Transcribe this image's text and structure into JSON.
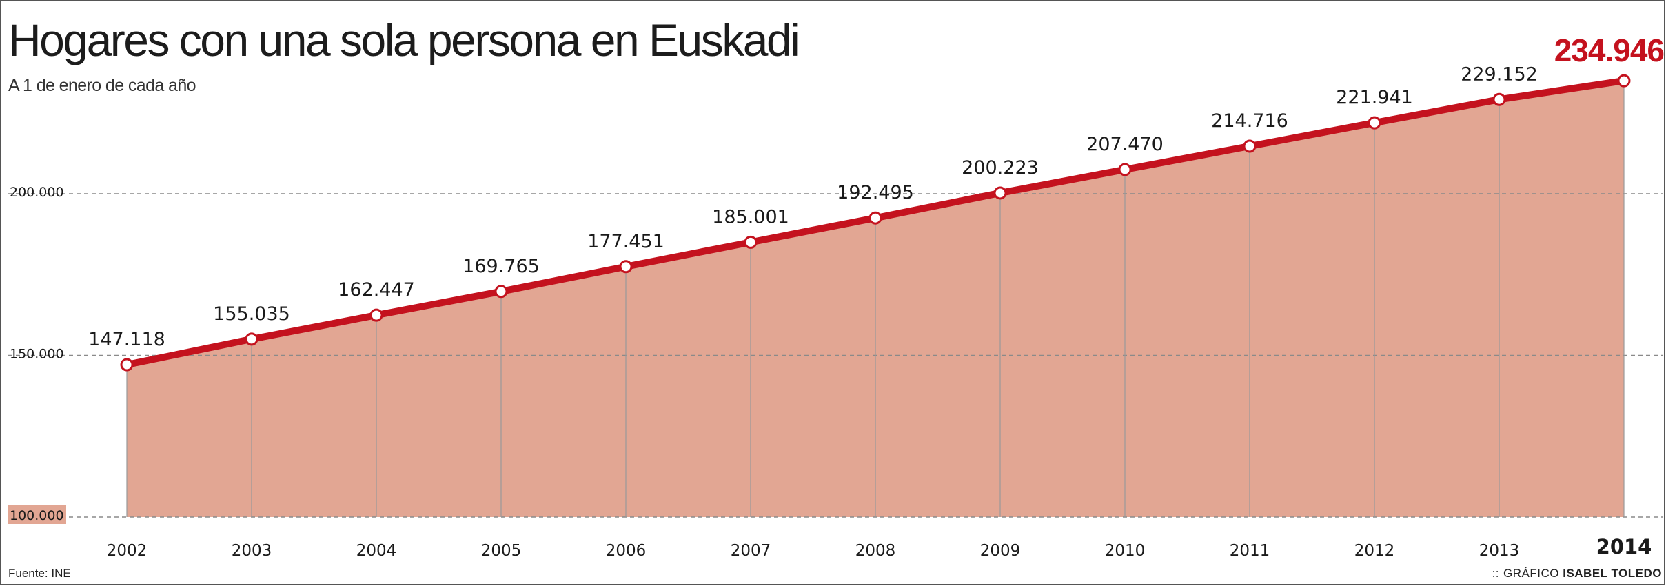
{
  "title": "Hogares con una sola persona en Euskadi",
  "subtitle": "A 1 de enero de cada año",
  "source": "Fuente: INE",
  "credit_prefix": "GRÁFICO",
  "credit_name": "ISABEL TOLEDO",
  "colors": {
    "line": "#c4121e",
    "area": "#e2a693",
    "highlight": "#c4121e"
  },
  "chart_data": {
    "type": "area",
    "title": "Hogares con una sola persona en Euskadi",
    "subtitle": "A 1 de enero de cada año",
    "categories": [
      "2002",
      "2003",
      "2004",
      "2005",
      "2006",
      "2007",
      "2008",
      "2009",
      "2010",
      "2011",
      "2012",
      "2013",
      "2014"
    ],
    "values": [
      147118,
      155035,
      162447,
      169765,
      177451,
      185001,
      192495,
      200223,
      207470,
      214716,
      221941,
      229152,
      234946
    ],
    "value_labels": [
      "147.118",
      "155.035",
      "162.447",
      "169.765",
      "177.451",
      "185.001",
      "192.495",
      "200.223",
      "207.470",
      "214.716",
      "221.941",
      "229.152",
      "234.946"
    ],
    "y_ticks": [
      100000,
      150000,
      200000
    ],
    "y_tick_labels": [
      "100.000",
      "150.000",
      "200.000"
    ],
    "ylim": [
      100000,
      234946
    ],
    "grid": "horizontal dashed",
    "xlabel": "",
    "ylabel": ""
  }
}
